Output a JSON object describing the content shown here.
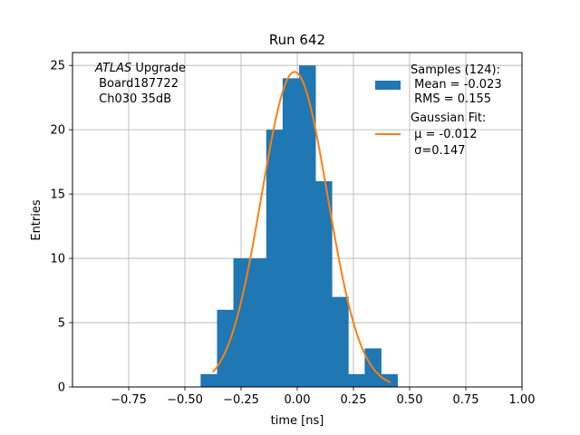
{
  "chart_data": {
    "type": "bar",
    "title": "Run 642",
    "xlabel": "time [ns]",
    "ylabel": "Entries",
    "xlim": [
      -1.0,
      1.0
    ],
    "ylim": [
      0,
      26
    ],
    "xticks": [
      -0.75,
      -0.5,
      -0.25,
      0.0,
      0.25,
      0.5,
      0.75,
      1.0
    ],
    "xtick_labels": [
      "−0.75",
      "−0.50",
      "−0.25",
      "0.00",
      "0.25",
      "0.50",
      "0.75",
      "1.00"
    ],
    "yticks": [
      0,
      5,
      10,
      15,
      20,
      25
    ],
    "ytick_labels": [
      "0",
      "5",
      "10",
      "15",
      "20",
      "25"
    ],
    "grid": true,
    "histogram": {
      "color": "#1f77b4",
      "bin_edges": [
        -0.43,
        -0.357,
        -0.284,
        -0.211,
        -0.138,
        -0.065,
        0.008,
        0.081,
        0.154,
        0.227,
        0.3,
        0.373,
        0.446
      ],
      "counts": [
        1,
        6,
        10,
        10,
        20,
        24,
        25,
        16,
        7,
        1,
        3,
        1
      ]
    },
    "fit": {
      "color": "#ff7f0e",
      "x_range": [
        -0.375,
        0.415
      ],
      "amplitude": 24.5,
      "mu": -0.012,
      "sigma": 0.147
    },
    "annotation_lines": [
      {
        "italic": "ATLAS",
        "rest": " Upgrade"
      },
      {
        "italic": "",
        "rest": " Board187722"
      },
      {
        "italic": "",
        "rest": " Ch030 35dB"
      }
    ],
    "legend": {
      "placement": "top-right",
      "entries": [
        {
          "kind": "patch",
          "lines": [
            "Samples (124):",
            " Mean = -0.023",
            " RMS = 0.155"
          ]
        },
        {
          "kind": "line",
          "lines": [
            "Gaussian Fit:",
            " μ = -0.012",
            " σ=0.147"
          ]
        }
      ]
    }
  }
}
